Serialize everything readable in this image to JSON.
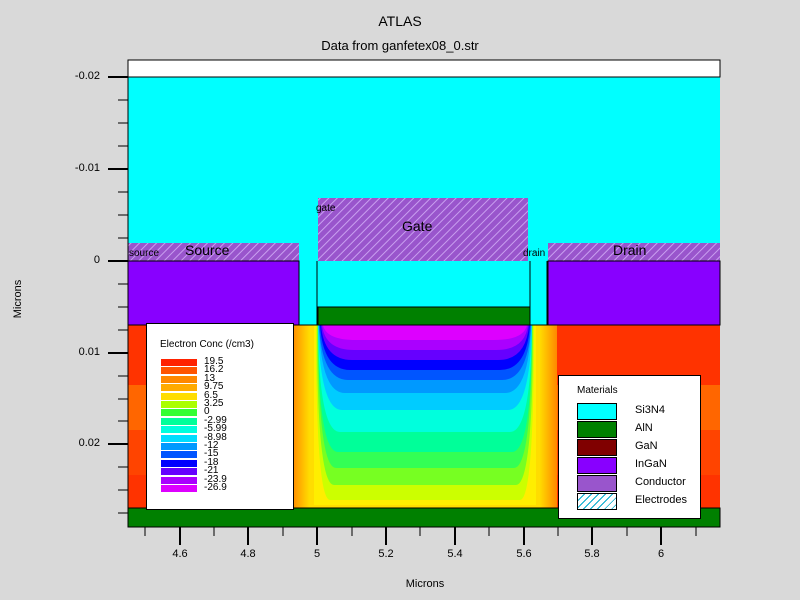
{
  "title": "ATLAS",
  "subtitle": "Data from ganfetex08_0.str",
  "axes": {
    "ylabel": "Microns",
    "xlabel": "Microns",
    "yticks": [
      "-0.02",
      "-0.01",
      "0",
      "0.01",
      "0.02"
    ],
    "xticks": [
      "4.6",
      "4.8",
      "5",
      "5.2",
      "5.4",
      "5.6",
      "5.8",
      "6"
    ]
  },
  "labels": {
    "source_elec": "source",
    "source_region": "Source",
    "gate_elec": "gate",
    "gate_region": "Gate",
    "drain_elec": "drain",
    "drain_region": "Drain"
  },
  "colorbar": {
    "title": "Electron Conc (/cm3)",
    "levels": [
      {
        "label": "19.5",
        "color": "#ff2200"
      },
      {
        "label": "16.2",
        "color": "#ff5500"
      },
      {
        "label": "13",
        "color": "#ff8800"
      },
      {
        "label": "9.75",
        "color": "#ffaa00"
      },
      {
        "label": "6.5",
        "color": "#ffdd00"
      },
      {
        "label": "3.25",
        "color": "#aaff00"
      },
      {
        "label": "0",
        "color": "#33ff33"
      },
      {
        "label": "-2.99",
        "color": "#00ff99"
      },
      {
        "label": "-5.99",
        "color": "#00ffdd"
      },
      {
        "label": "-8.98",
        "color": "#00ddff"
      },
      {
        "label": "-12",
        "color": "#0099ff"
      },
      {
        "label": "-15",
        "color": "#0055ff"
      },
      {
        "label": "-18",
        "color": "#0000ff"
      },
      {
        "label": "-21",
        "color": "#6600ff"
      },
      {
        "label": "-23.9",
        "color": "#aa00ff"
      },
      {
        "label": "-26.9",
        "color": "#dd00ff"
      }
    ]
  },
  "materials": {
    "title": "Materials",
    "items": [
      {
        "label": "Si3N4",
        "color": "#00ffff"
      },
      {
        "label": "AlN",
        "color": "#008000"
      },
      {
        "label": "GaN",
        "color": "#800000"
      },
      {
        "label": "InGaN",
        "color": "#8800ff"
      },
      {
        "label": "Conductor",
        "color": "#9955cc"
      },
      {
        "label": "Electrodes",
        "color": "#ffffff"
      }
    ]
  }
}
